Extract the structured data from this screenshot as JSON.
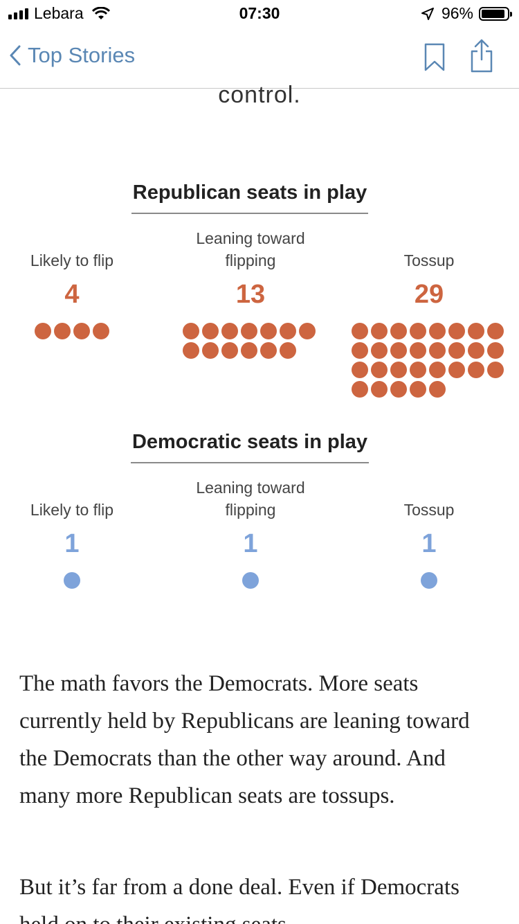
{
  "status_bar": {
    "carrier": "Lebara",
    "time": "07:30",
    "battery": "96%"
  },
  "nav": {
    "back_label": "Top Stories",
    "icons": [
      "chevron-left-icon",
      "bookmark-icon",
      "share-icon"
    ]
  },
  "article": {
    "cut_text": "control.",
    "paragraph1": "The math favors the Democrats. More seats currently held by Republicans are leaning toward the Democrats than the other way around. And many more Republican seats are tossups.",
    "paragraph2": "But it’s far from a done deal. Even if Democrats held on to their existing seats"
  },
  "colors": {
    "republican": "#cd6540",
    "democratic": "#7ea3da",
    "link": "#5a87b4"
  },
  "republican": {
    "title": "Republican seats in play",
    "columns": [
      {
        "label": "Likely to flip",
        "count": "4"
      },
      {
        "label": "Leaning toward flipping",
        "count": "13"
      },
      {
        "label": "Tossup",
        "count": "29"
      }
    ]
  },
  "democratic": {
    "title": "Democratic seats in play",
    "columns": [
      {
        "label": "Likely to flip",
        "count": "1"
      },
      {
        "label": "Leaning toward flipping",
        "count": "1"
      },
      {
        "label": "Tossup",
        "count": "1"
      }
    ]
  }
}
